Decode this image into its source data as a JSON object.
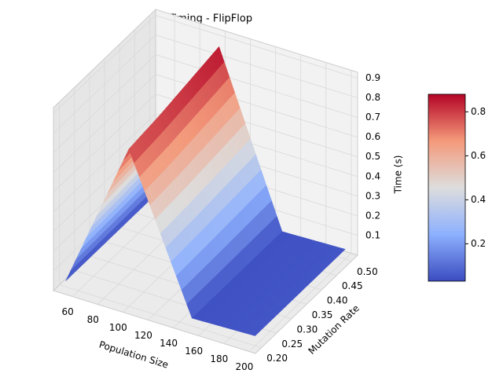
{
  "chart_data": {
    "type": "surface",
    "title": "GA Timing - FlipFlop",
    "x_label": "Population Size",
    "y_label": "Mutation Rate",
    "z_label": "Time (s)",
    "x": [
      50,
      100,
      150,
      200
    ],
    "y": [
      0.2,
      0.3,
      0.4,
      0.5
    ],
    "z": [
      [
        0.03,
        0.8,
        0.04,
        0.05
      ],
      [
        0.03,
        0.82,
        0.04,
        0.05
      ],
      [
        0.03,
        0.85,
        0.04,
        0.05
      ],
      [
        0.03,
        0.88,
        0.04,
        0.05
      ]
    ],
    "xlim": [
      45,
      205
    ],
    "ylim": [
      0.18,
      0.52
    ],
    "zlim": [
      0,
      0.93
    ],
    "xticks": [
      60,
      80,
      100,
      120,
      140,
      160,
      180,
      200
    ],
    "yticks": [
      {
        "value": 0.2,
        "label": "0.20"
      },
      {
        "value": 0.25,
        "label": "0.25"
      },
      {
        "value": 0.3,
        "label": "0.30"
      },
      {
        "value": 0.35,
        "label": "0.35"
      },
      {
        "value": 0.4,
        "label": "0.40"
      },
      {
        "value": 0.45,
        "label": "0.45"
      },
      {
        "value": 0.5,
        "label": "0.50"
      }
    ],
    "zticks": [
      0.1,
      0.2,
      0.3,
      0.4,
      0.5,
      0.6,
      0.7,
      0.8,
      0.9
    ],
    "colormap": "coolwarm",
    "clim": [
      0.03,
      0.88
    ],
    "colorbar_ticks": [
      0.2,
      0.4,
      0.6,
      0.8
    ]
  }
}
